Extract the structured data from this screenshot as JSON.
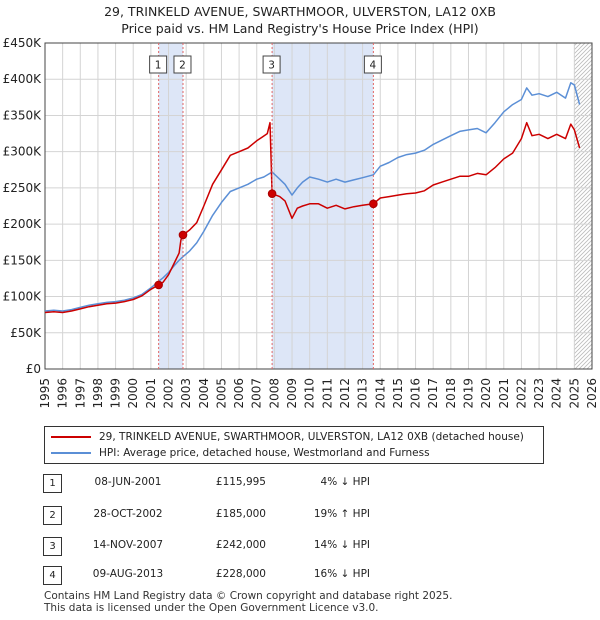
{
  "title_line1": "29, TRINKELD AVENUE, SWARTHMOOR, ULVERSTON, LA12 0XB",
  "title_line2": "Price paid vs. HM Land Registry's House Price Index (HPI)",
  "chart_data": {
    "type": "line",
    "title": "29, TRINKELD AVENUE, SWARTHMOOR, ULVERSTON, LA12 0XB — Price paid vs. HM Land Registry's House Price Index (HPI)",
    "xlabel": "",
    "ylabel": "",
    "xlim": [
      1995,
      2026
    ],
    "ylim": [
      0,
      450000
    ],
    "y_ticks": [
      0,
      50000,
      100000,
      150000,
      200000,
      250000,
      300000,
      350000,
      400000,
      450000
    ],
    "y_tick_labels": [
      "£0",
      "£50K",
      "£100K",
      "£150K",
      "£200K",
      "£250K",
      "£300K",
      "£350K",
      "£400K",
      "£450K"
    ],
    "x_ticks": [
      1995,
      1996,
      1997,
      1998,
      1999,
      2000,
      2001,
      2002,
      2003,
      2004,
      2005,
      2006,
      2007,
      2008,
      2009,
      2010,
      2011,
      2012,
      2013,
      2014,
      2015,
      2016,
      2017,
      2018,
      2019,
      2020,
      2021,
      2022,
      2023,
      2024,
      2025,
      2026
    ],
    "x_tick_labels": [
      "1995",
      "1996",
      "1997",
      "1998",
      "1999",
      "2000",
      "2001",
      "2002",
      "2003",
      "2004",
      "2005",
      "2006",
      "2007",
      "2008",
      "2009",
      "2010",
      "2011",
      "2012",
      "2013",
      "2014",
      "2015",
      "2016",
      "2017",
      "2018",
      "2019",
      "2020",
      "2021",
      "2022",
      "2023",
      "2024",
      "2025",
      "2026"
    ],
    "grid": true,
    "shaded_periods": [
      [
        2001.44,
        2002.82
      ],
      [
        2007.87,
        2013.61
      ]
    ],
    "hatched_after": 2025.0,
    "series": [
      {
        "name": "29, TRINKELD AVENUE, SWARTHMOOR, ULVERSTON, LA12 0XB (detached house)",
        "color": "#cc0000",
        "x": [
          1995.0,
          1995.5,
          1996.0,
          1996.5,
          1997.0,
          1997.5,
          1998.0,
          1998.5,
          1999.0,
          1999.5,
          2000.0,
          2000.5,
          2001.0,
          2001.44,
          2001.7,
          2002.0,
          2002.3,
          2002.6,
          2002.7,
          2002.82,
          2003.2,
          2003.6,
          2004.0,
          2004.5,
          2005.0,
          2005.5,
          2006.0,
          2006.5,
          2007.0,
          2007.3,
          2007.6,
          2007.75,
          2007.87,
          2008.3,
          2008.6,
          2009.0,
          2009.3,
          2009.6,
          2010.0,
          2010.5,
          2011.0,
          2011.5,
          2012.0,
          2012.5,
          2013.0,
          2013.61,
          2014.0,
          2014.5,
          2015.0,
          2015.5,
          2016.0,
          2016.5,
          2017.0,
          2017.5,
          2018.0,
          2018.5,
          2019.0,
          2019.5,
          2020.0,
          2020.5,
          2021.0,
          2021.5,
          2022.0,
          2022.3,
          2022.6,
          2023.0,
          2023.5,
          2024.0,
          2024.5,
          2024.8,
          2025.0,
          2025.3
        ],
        "values": [
          78000,
          79000,
          78000,
          80000,
          83000,
          86000,
          88000,
          90000,
          91000,
          93000,
          96000,
          101000,
          110000,
          115995,
          120000,
          130000,
          145000,
          160000,
          178000,
          185000,
          192000,
          202000,
          225000,
          255000,
          275000,
          295000,
          300000,
          305000,
          315000,
          320000,
          325000,
          340000,
          242000,
          238000,
          232000,
          208000,
          222000,
          225000,
          228000,
          228000,
          222000,
          226000,
          221000,
          224000,
          226000,
          228000,
          236000,
          238000,
          240000,
          242000,
          243000,
          246000,
          254000,
          258000,
          262000,
          266000,
          266000,
          270000,
          268000,
          278000,
          290000,
          298000,
          318000,
          340000,
          322000,
          324000,
          318000,
          324000,
          318000,
          338000,
          330000,
          305000
        ]
      },
      {
        "name": "HPI: Average price, detached house, Westmorland and Furness",
        "color": "#5b8fd6",
        "x": [
          1995.0,
          1995.5,
          1996.0,
          1996.5,
          1997.0,
          1997.5,
          1998.0,
          1998.5,
          1999.0,
          1999.5,
          2000.0,
          2000.5,
          2001.0,
          2001.44,
          2001.7,
          2002.0,
          2002.3,
          2002.6,
          2002.82,
          2003.2,
          2003.6,
          2004.0,
          2004.5,
          2005.0,
          2005.5,
          2006.0,
          2006.5,
          2007.0,
          2007.4,
          2007.87,
          2008.3,
          2008.6,
          2009.0,
          2009.3,
          2009.6,
          2010.0,
          2010.5,
          2011.0,
          2011.5,
          2012.0,
          2012.5,
          2013.0,
          2013.61,
          2014.0,
          2014.5,
          2015.0,
          2015.5,
          2016.0,
          2016.5,
          2017.0,
          2017.5,
          2018.0,
          2018.5,
          2019.0,
          2019.5,
          2020.0,
          2020.5,
          2021.0,
          2021.5,
          2022.0,
          2022.3,
          2022.6,
          2023.0,
          2023.5,
          2024.0,
          2024.5,
          2024.8,
          2025.0,
          2025.3
        ],
        "values": [
          80000,
          81000,
          80000,
          82000,
          85000,
          88000,
          90000,
          92000,
          93000,
          95000,
          98000,
          103000,
          112000,
          121000,
          126000,
          133000,
          142000,
          150000,
          155000,
          163000,
          174000,
          190000,
          212000,
          230000,
          245000,
          250000,
          255000,
          262000,
          265000,
          272000,
          262000,
          255000,
          240000,
          250000,
          258000,
          265000,
          262000,
          258000,
          262000,
          258000,
          261000,
          264000,
          268000,
          280000,
          285000,
          292000,
          296000,
          298000,
          302000,
          310000,
          316000,
          322000,
          328000,
          330000,
          332000,
          326000,
          340000,
          355000,
          365000,
          372000,
          388000,
          378000,
          380000,
          376000,
          382000,
          374000,
          395000,
          392000,
          365000
        ]
      }
    ],
    "markers": [
      {
        "label": "1",
        "x": 2001.44,
        "y": 115995
      },
      {
        "label": "2",
        "x": 2002.82,
        "y": 185000
      },
      {
        "label": "3",
        "x": 2007.87,
        "y": 242000
      },
      {
        "label": "4",
        "x": 2013.61,
        "y": 228000
      }
    ]
  },
  "legend": [
    {
      "label": "29, TRINKELD AVENUE, SWARTHMOOR, ULVERSTON, LA12 0XB (detached house)",
      "color": "#cc0000"
    },
    {
      "label": "HPI: Average price, detached house, Westmorland and Furness",
      "color": "#5b8fd6"
    }
  ],
  "transactions": [
    {
      "num": "1",
      "date": "08-JUN-2001",
      "price": "£115,995",
      "hpi": "4% ↓ HPI"
    },
    {
      "num": "2",
      "date": "28-OCT-2002",
      "price": "£185,000",
      "hpi": "19% ↑ HPI"
    },
    {
      "num": "3",
      "date": "14-NOV-2007",
      "price": "£242,000",
      "hpi": "14% ↓ HPI"
    },
    {
      "num": "4",
      "date": "09-AUG-2013",
      "price": "£228,000",
      "hpi": "16% ↓ HPI"
    }
  ],
  "footer_line1": "Contains HM Land Registry data © Crown copyright and database right 2025.",
  "footer_line2": "This data is licensed under the Open Government Licence v3.0."
}
